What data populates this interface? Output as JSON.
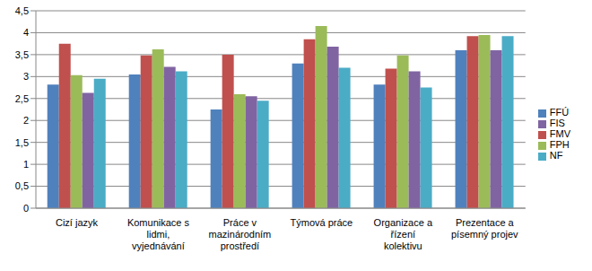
{
  "chart_data": {
    "type": "bar",
    "categories": [
      "Cizí jazyk",
      "Komunikace s lidmi, vyjednávání",
      "Práce v mazinárodním prostředí",
      "Týmová práce",
      "Organizace a řízení kolektivu",
      "Prezentace a písemný projev"
    ],
    "series": [
      {
        "name": "FFÚ",
        "color": "#4f81bd",
        "values": [
          2.82,
          3.05,
          2.25,
          3.3,
          2.82,
          3.6
        ]
      },
      {
        "name": "FMV",
        "color": "#c0504d",
        "values": [
          3.75,
          3.48,
          3.5,
          3.85,
          3.18,
          3.92
        ]
      },
      {
        "name": "FPH",
        "color": "#9bbb59",
        "values": [
          3.03,
          3.62,
          2.6,
          4.15,
          3.48,
          3.95
        ]
      },
      {
        "name": "FIS",
        "color": "#8064a2",
        "values": [
          2.63,
          3.22,
          2.55,
          3.68,
          3.12,
          3.6
        ]
      },
      {
        "name": "NF",
        "color": "#4bacc6",
        "values": [
          2.95,
          3.12,
          2.45,
          3.2,
          2.75,
          3.92
        ]
      }
    ],
    "ylim": [
      0,
      4.5
    ],
    "yticks": [
      0,
      {
        "value": 0.5,
        "label": "0,5"
      },
      1,
      {
        "value": 1.5,
        "label": "1,5"
      },
      2,
      {
        "value": 2.5,
        "label": "2,5"
      },
      3,
      {
        "value": 3.5,
        "label": "3,5"
      },
      4,
      {
        "value": 4.5,
        "label": "4,5"
      }
    ],
    "grid": true,
    "legend": "right"
  }
}
